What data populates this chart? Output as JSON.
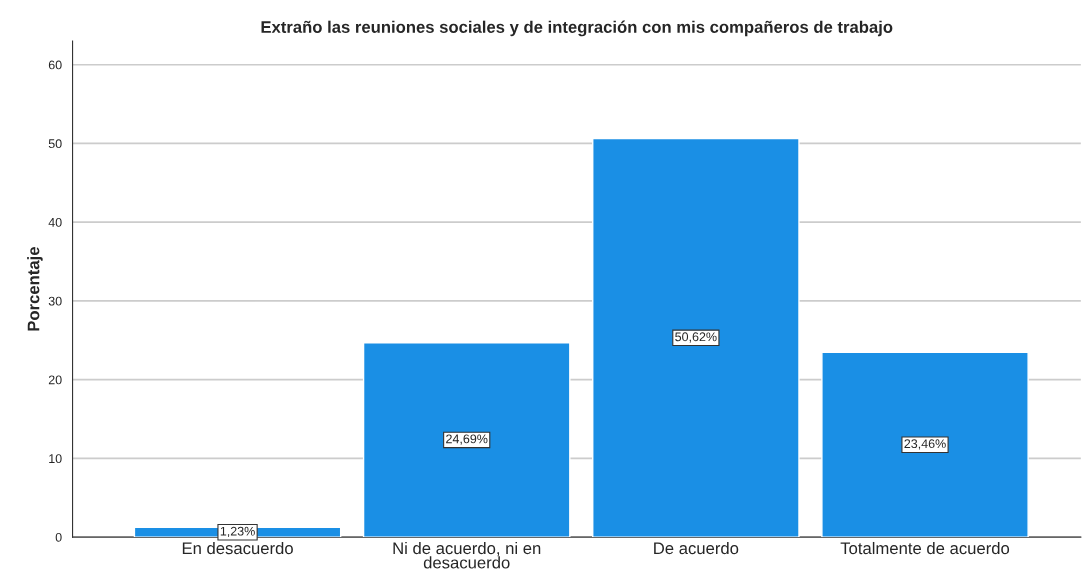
{
  "chart_data": {
    "type": "bar",
    "title": "Extraño las reuniones sociales y de integración con mis compañeros de trabajo",
    "ylabel": "Porcentaje",
    "categories": [
      "En desacuerdo",
      "Ni de acuerdo, ni en\ndesacuerdo",
      "De acuerdo",
      "Totalmente de acuerdo"
    ],
    "values": [
      1.23,
      24.69,
      50.62,
      23.46
    ],
    "value_labels": [
      "1,23%",
      "24,69%",
      "50,62%",
      "23,46%"
    ],
    "color": "#1a8fe5",
    "ylim": [
      0,
      63
    ],
    "yticks": [
      0,
      10,
      20,
      30,
      40,
      50,
      60
    ],
    "grid": "y"
  }
}
